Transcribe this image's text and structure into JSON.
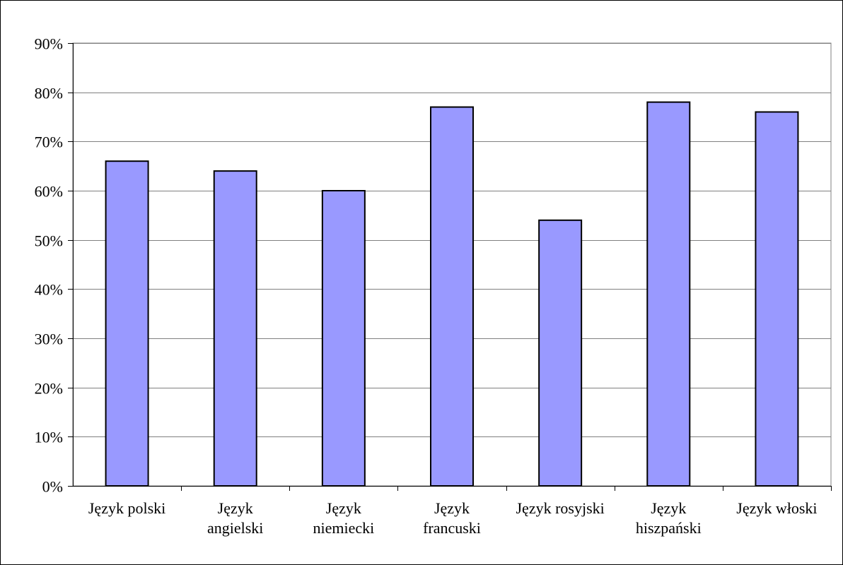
{
  "chart_data": {
    "type": "bar",
    "title": "",
    "xlabel": "",
    "ylabel": "",
    "categories": [
      [
        "Język polski"
      ],
      [
        "Język",
        "angielski"
      ],
      [
        "Język",
        "niemiecki"
      ],
      [
        "Język",
        "francuski"
      ],
      [
        "Język rosyjski"
      ],
      [
        "Język",
        "hiszpański"
      ],
      [
        "Język włoski"
      ]
    ],
    "values": [
      66,
      64,
      60,
      77,
      54,
      78,
      76
    ],
    "value_unit": "%",
    "ylim": [
      0,
      90
    ],
    "yticks": [
      "0%",
      "10%",
      "20%",
      "30%",
      "40%",
      "50%",
      "60%",
      "70%",
      "80%",
      "90%"
    ],
    "grid": true,
    "legend": "none",
    "colors": {
      "bar_fill": "#9999ff",
      "bar_stroke": "#000000",
      "gridline": "#808080",
      "plot_border": "#808080",
      "axis": "#000000",
      "outer_border": "#000000"
    }
  }
}
